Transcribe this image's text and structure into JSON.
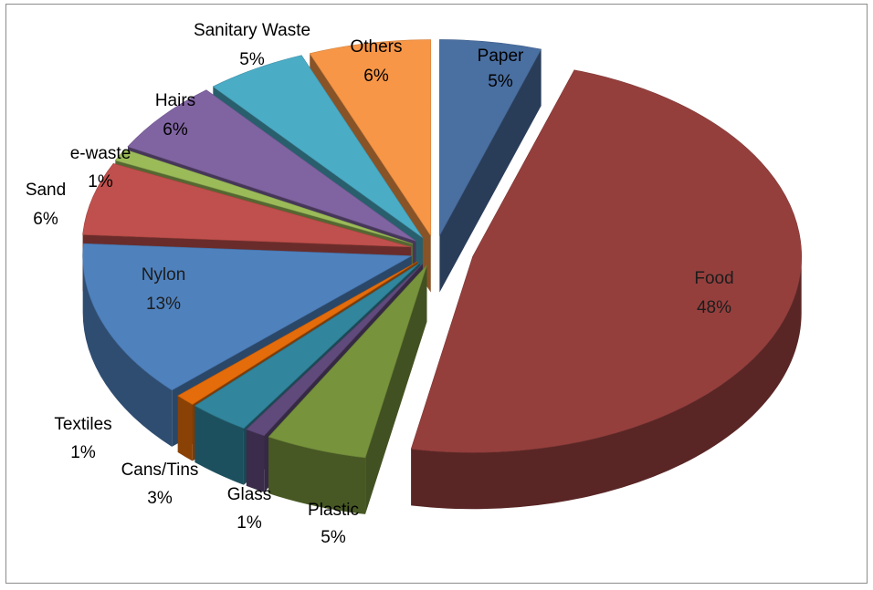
{
  "chart_data": {
    "type": "pie",
    "style": "3d-exploded",
    "title": "",
    "legend": "none",
    "slices": [
      {
        "name": "Paper",
        "value": 5,
        "label": "5%",
        "color": "#4a6fa1",
        "exploded": true
      },
      {
        "name": "Food",
        "value": 48,
        "label": "48%",
        "color": "#953f3d",
        "exploded": true
      },
      {
        "name": "Plastic",
        "value": 5,
        "label": "5%",
        "color": "#77933c",
        "exploded": true
      },
      {
        "name": "Glass",
        "value": 1,
        "label": "1%",
        "color": "#604a7b",
        "exploded": true
      },
      {
        "name": "Cans/Tins",
        "value": 3,
        "label": "3%",
        "color": "#31859c",
        "exploded": true
      },
      {
        "name": "Textiles",
        "value": 1,
        "label": "1%",
        "color": "#e46c0a",
        "exploded": true
      },
      {
        "name": "Nylon",
        "value": 13,
        "label": "13%",
        "color": "#4f81bd",
        "exploded": false
      },
      {
        "name": "Sand",
        "value": 6,
        "label": "6%",
        "color": "#c0504d",
        "exploded": false
      },
      {
        "name": "e-waste",
        "value": 1,
        "label": "1%",
        "color": "#9bbb59",
        "exploded": false
      },
      {
        "name": "Hairs",
        "value": 6,
        "label": "6%",
        "color": "#8064a2",
        "exploded": false
      },
      {
        "name": "Sanitary Waste",
        "value": 5,
        "label": "5%",
        "color": "#4bacc6",
        "exploded": false
      },
      {
        "name": "Others",
        "value": 6,
        "label": "6%",
        "color": "#f79646",
        "exploded": false
      }
    ]
  }
}
